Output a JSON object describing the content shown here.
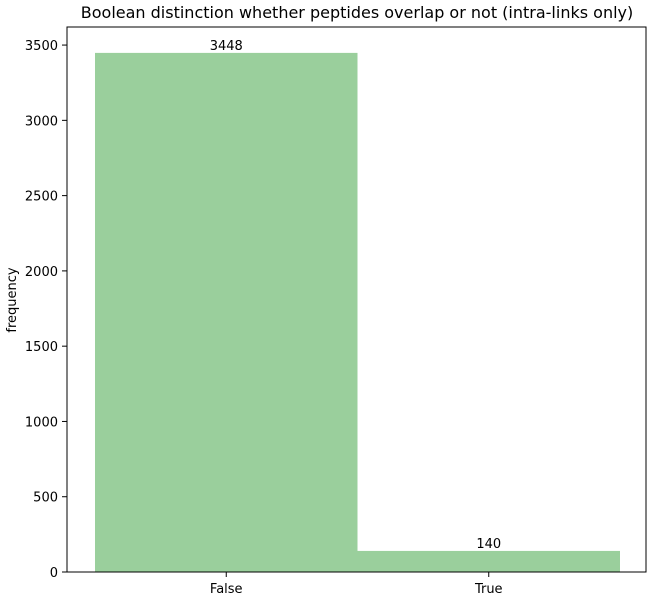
{
  "chart_data": {
    "type": "bar",
    "title": "Boolean distinction whether peptides overlap or not (intra-links only)",
    "xlabel": "",
    "ylabel": "frequency",
    "categories": [
      "False",
      "True"
    ],
    "values": [
      3448,
      140
    ],
    "data_labels": [
      "3448",
      "140"
    ],
    "ylim": [
      0,
      3620
    ],
    "yticks": [
      0,
      500,
      1000,
      1500,
      2000,
      2500,
      3000,
      3500
    ],
    "ytick_labels": [
      "0",
      "500",
      "1000",
      "1500",
      "2000",
      "2500",
      "3000",
      "3500"
    ],
    "bar_color": "#9acf9c",
    "grid": false,
    "legend": "none"
  }
}
